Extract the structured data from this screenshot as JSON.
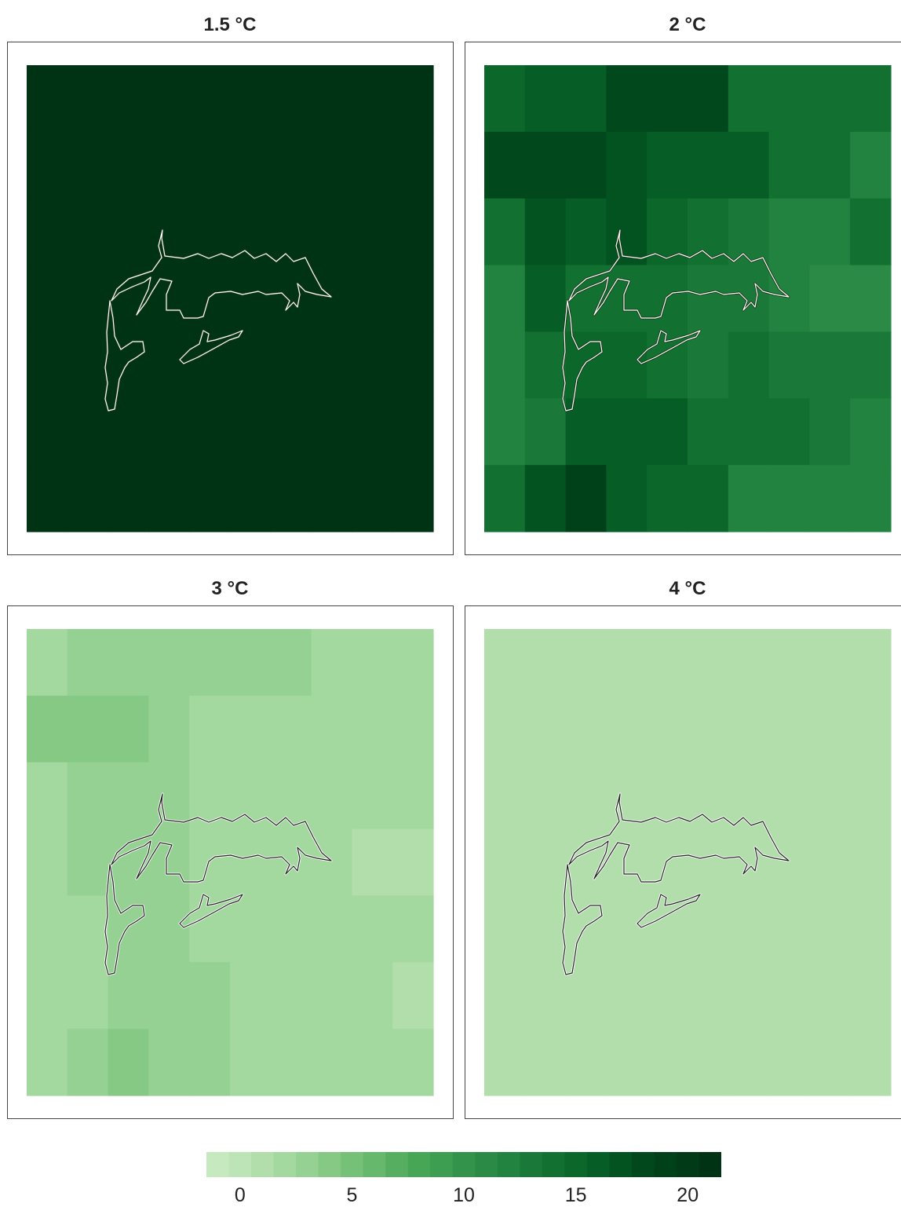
{
  "chart_data": [
    {
      "type": "heatmap",
      "title": "1.5 °C",
      "cols": 10,
      "rows": 7,
      "outline_color": "#ffffff",
      "values": [
        [
          22,
          22,
          22,
          22,
          22,
          22,
          22,
          22,
          22,
          22
        ],
        [
          22,
          22,
          22,
          22,
          22,
          22,
          22,
          22,
          22,
          22
        ],
        [
          22,
          22,
          22,
          22,
          22,
          22,
          22,
          22,
          22,
          22
        ],
        [
          22,
          22,
          22,
          22,
          22,
          22,
          22,
          22,
          21,
          21
        ],
        [
          22,
          22,
          22,
          22,
          22,
          22,
          22,
          22,
          21,
          21
        ],
        [
          22,
          22,
          22,
          22,
          22,
          22,
          22,
          22,
          22,
          21
        ],
        [
          22,
          22,
          22,
          22,
          22,
          22,
          22,
          22,
          22,
          22
        ]
      ]
    },
    {
      "type": "heatmap",
      "title": "2 °C",
      "cols": 10,
      "rows": 7,
      "outline_color": "#ffffff",
      "values": [
        [
          15,
          16,
          16,
          18,
          18,
          18,
          14,
          14,
          14,
          14
        ],
        [
          18,
          18,
          18,
          17,
          16,
          16,
          16,
          14,
          14,
          12
        ],
        [
          14,
          17,
          16,
          17,
          15,
          14,
          13,
          12,
          12,
          14
        ],
        [
          12,
          16,
          14,
          14,
          14,
          13,
          13,
          12,
          11,
          11
        ],
        [
          12,
          14,
          15,
          15,
          14,
          13,
          14,
          13,
          13,
          13
        ],
        [
          12,
          13,
          16,
          16,
          16,
          14,
          14,
          14,
          13,
          12
        ],
        [
          14,
          17,
          19,
          16,
          15,
          15,
          12,
          12,
          12,
          12
        ]
      ]
    },
    {
      "type": "heatmap",
      "title": "3 °C",
      "cols": 10,
      "rows": 7,
      "outline_color": "#222222",
      "values": [
        [
          2,
          3,
          3,
          3,
          3,
          3,
          3,
          2,
          2,
          2
        ],
        [
          4,
          4,
          4,
          3,
          2,
          2,
          2,
          2,
          2,
          2
        ],
        [
          2,
          3,
          3,
          3,
          2,
          2,
          2,
          2,
          2,
          2
        ],
        [
          2,
          3,
          3,
          3,
          2,
          2,
          2,
          2,
          1,
          1
        ],
        [
          2,
          2,
          3,
          3,
          2,
          2,
          2,
          2,
          2,
          2
        ],
        [
          2,
          2,
          3,
          3,
          3,
          2,
          2,
          2,
          2,
          1
        ],
        [
          2,
          3,
          4,
          3,
          3,
          2,
          2,
          2,
          2,
          2
        ]
      ]
    },
    {
      "type": "heatmap",
      "title": "4 °C",
      "cols": 10,
      "rows": 7,
      "outline_color": "#222222",
      "values": [
        [
          1,
          1,
          1,
          1,
          1,
          1,
          1,
          1,
          1,
          1
        ],
        [
          1,
          1,
          1,
          1,
          1,
          1,
          1,
          1,
          1,
          1
        ],
        [
          1,
          1,
          1,
          1,
          1,
          1,
          1,
          1,
          1,
          1
        ],
        [
          1,
          1,
          1,
          1,
          1,
          1,
          1,
          1,
          1,
          1
        ],
        [
          1,
          1,
          1,
          1,
          1,
          1,
          1,
          1,
          1,
          1
        ],
        [
          1,
          1,
          1,
          1,
          1,
          1,
          1,
          1,
          1,
          1
        ],
        [
          1,
          1,
          1,
          1,
          1,
          1,
          1,
          1,
          1,
          1
        ]
      ]
    }
  ],
  "colorbar": {
    "min": -1,
    "max": 22,
    "bins": 23,
    "palette": [
      "#c7e9c0",
      "#bde4b6",
      "#b1deab",
      "#a3d89f",
      "#95d192",
      "#86c985",
      "#76c178",
      "#66b96c",
      "#56af61",
      "#47a656",
      "#3d9d51",
      "#34934b",
      "#2b8a45",
      "#22823f",
      "#1a7938",
      "#127031",
      "#0c672b",
      "#075d26",
      "#035321",
      "#01491d",
      "#004119",
      "#003a16",
      "#003313"
    ],
    "ticks": [
      "0",
      "5",
      "10",
      "15",
      "20"
    ],
    "tick_values": [
      0,
      5,
      10,
      15,
      20
    ]
  }
}
